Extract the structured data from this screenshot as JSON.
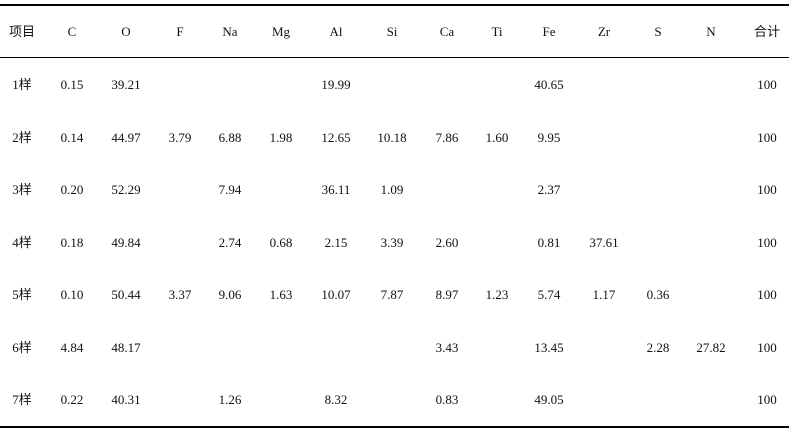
{
  "table": {
    "header": [
      "项目",
      "C",
      "O",
      "F",
      "Na",
      "Mg",
      "Al",
      "Si",
      "Ca",
      "Ti",
      "Fe",
      "Zr",
      "S",
      "N",
      "合计"
    ],
    "rows": [
      [
        "1样",
        "0.15",
        "39.21",
        null,
        null,
        null,
        "19.99",
        null,
        null,
        null,
        "40.65",
        null,
        null,
        null,
        "100"
      ],
      [
        "2样",
        "0.14",
        "44.97",
        "3.79",
        "6.88",
        "1.98",
        "12.65",
        "10.18",
        "7.86",
        "1.60",
        "9.95",
        null,
        null,
        null,
        "100"
      ],
      [
        "3样",
        "0.20",
        "52.29",
        null,
        "7.94",
        null,
        "36.11",
        "1.09",
        null,
        null,
        "2.37",
        null,
        null,
        null,
        "100"
      ],
      [
        "4样",
        "0.18",
        "49.84",
        null,
        "2.74",
        "0.68",
        "2.15",
        "3.39",
        "2.60",
        null,
        "0.81",
        "37.61",
        null,
        null,
        "100"
      ],
      [
        "5样",
        "0.10",
        "50.44",
        "3.37",
        "9.06",
        "1.63",
        "10.07",
        "7.87",
        "8.97",
        "1.23",
        "5.74",
        "1.17",
        "0.36",
        null,
        "100"
      ],
      [
        "6样",
        "4.84",
        "48.17",
        null,
        null,
        null,
        null,
        null,
        "3.43",
        null,
        "13.45",
        null,
        "2.28",
        "27.82",
        "100"
      ],
      [
        "7样",
        "0.22",
        "40.31",
        null,
        "1.26",
        null,
        "8.32",
        null,
        "0.83",
        null,
        "49.05",
        null,
        null,
        null,
        "100"
      ]
    ]
  }
}
